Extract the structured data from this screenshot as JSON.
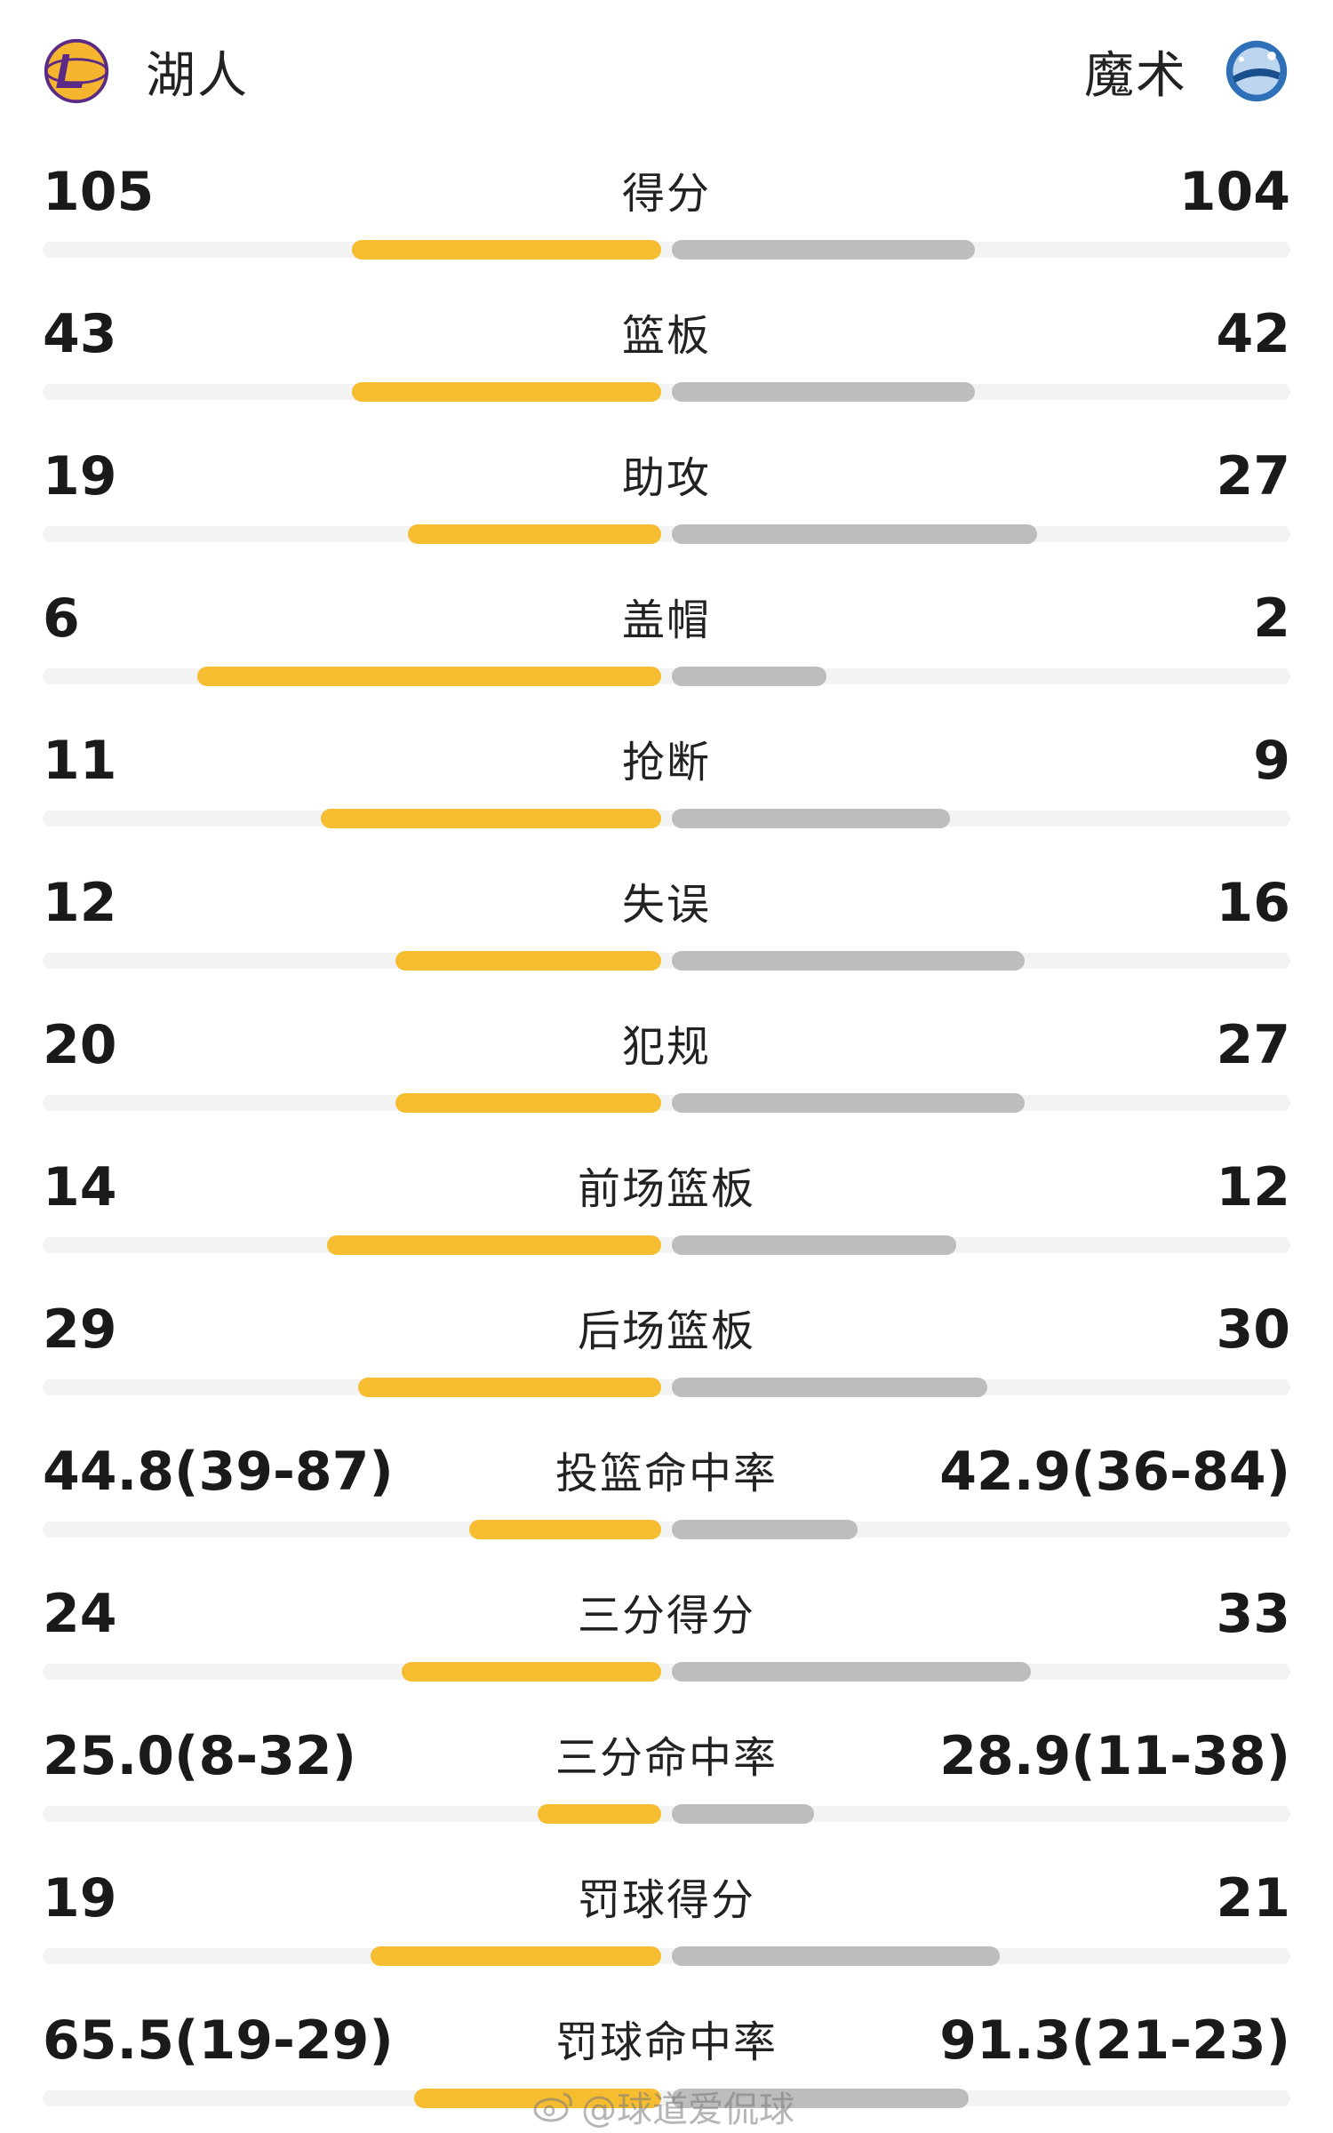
{
  "header": {
    "home_team": "湖人",
    "away_team": "魔术",
    "home_logo": "lakers-logo",
    "away_logo": "magic-logo"
  },
  "colors": {
    "home_bar": "#f7bd31",
    "away_bar": "#bdbdbd",
    "track": "#f3f3f3"
  },
  "stats": [
    {
      "label": "得分",
      "home": "105",
      "away": "104",
      "home_fraction": 0.5,
      "away_fraction": 0.49
    },
    {
      "label": "篮板",
      "home": "43",
      "away": "42",
      "home_fraction": 0.5,
      "away_fraction": 0.49
    },
    {
      "label": "助攻",
      "home": "19",
      "away": "27",
      "home_fraction": 0.41,
      "away_fraction": 0.59
    },
    {
      "label": "盖帽",
      "home": "6",
      "away": "2",
      "home_fraction": 0.75,
      "away_fraction": 0.25
    },
    {
      "label": "抢断",
      "home": "11",
      "away": "9",
      "home_fraction": 0.55,
      "away_fraction": 0.45
    },
    {
      "label": "失误",
      "home": "12",
      "away": "16",
      "home_fraction": 0.43,
      "away_fraction": 0.57
    },
    {
      "label": "犯规",
      "home": "20",
      "away": "27",
      "home_fraction": 0.43,
      "away_fraction": 0.57
    },
    {
      "label": "前场篮板",
      "home": "14",
      "away": "12",
      "home_fraction": 0.54,
      "away_fraction": 0.46
    },
    {
      "label": "后场篮板",
      "home": "29",
      "away": "30",
      "home_fraction": 0.49,
      "away_fraction": 0.51
    },
    {
      "label": "投篮命中率",
      "home": "44.8(39-87)",
      "away": "42.9(36-84)",
      "home_fraction": 0.31,
      "away_fraction": 0.3
    },
    {
      "label": "三分得分",
      "home": "24",
      "away": "33",
      "home_fraction": 0.42,
      "away_fraction": 0.58
    },
    {
      "label": "三分命中率",
      "home": "25.0(8-32)",
      "away": "28.9(11-38)",
      "home_fraction": 0.2,
      "away_fraction": 0.23
    },
    {
      "label": "罚球得分",
      "home": "19",
      "away": "21",
      "home_fraction": 0.47,
      "away_fraction": 0.53
    },
    {
      "label": "罚球命中率",
      "home": "65.5(19-29)",
      "away": "91.3(21-23)",
      "home_fraction": 0.4,
      "away_fraction": 0.48
    }
  ],
  "watermark": {
    "icon": "weibo-icon",
    "text": "@球道爱侃球"
  }
}
